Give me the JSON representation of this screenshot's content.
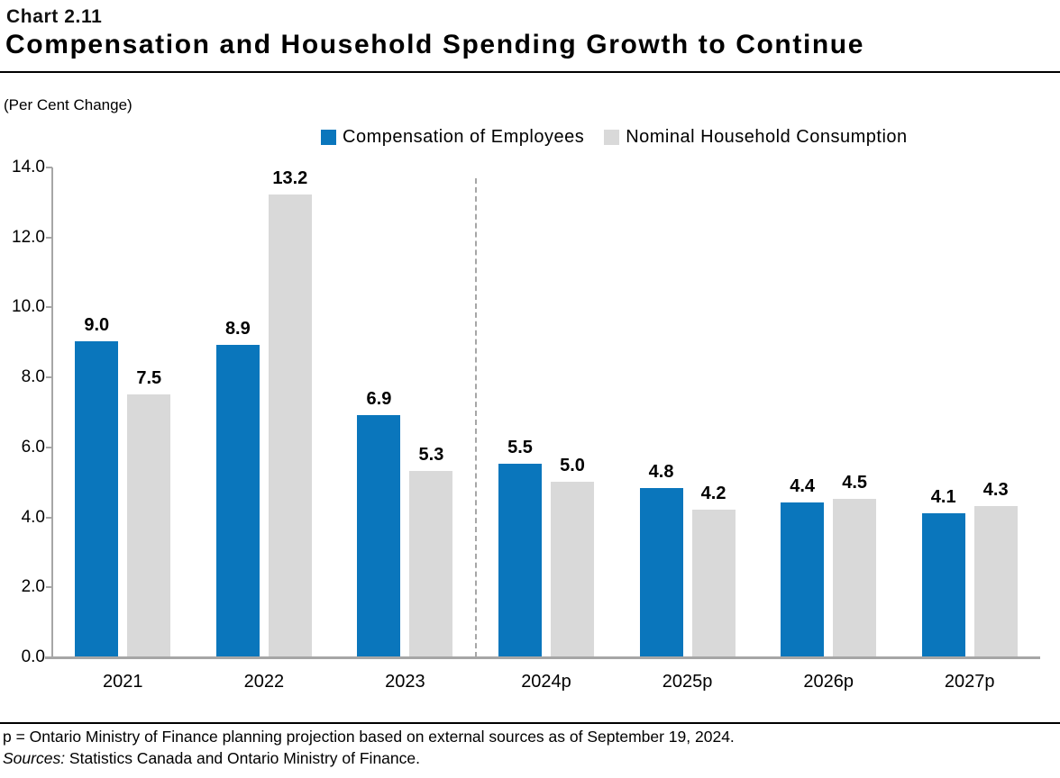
{
  "header": {
    "chart_number": "Chart 2.11",
    "title": "Compensation and Household Spending Growth to Continue"
  },
  "units_label": "(Per Cent Change)",
  "legend": [
    {
      "label": "Compensation of Employees",
      "color": "#0A76BC"
    },
    {
      "label": "Nominal Household Consumption",
      "color": "#D9D9D9"
    }
  ],
  "chart_data": {
    "type": "bar",
    "title": "Compensation and Household Spending Growth to Continue",
    "ylabel": "(Per Cent Change)",
    "categories": [
      "2021",
      "2022",
      "2023",
      "2024p",
      "2025p",
      "2026p",
      "2027p"
    ],
    "series": [
      {
        "name": "Compensation of Employees",
        "color": "#0A76BC",
        "values": [
          9.0,
          8.9,
          6.9,
          5.5,
          4.8,
          4.4,
          4.1
        ]
      },
      {
        "name": "Nominal Household Consumption",
        "color": "#D9D9D9",
        "values": [
          7.5,
          13.2,
          5.3,
          5.0,
          4.2,
          4.5,
          4.3
        ]
      }
    ],
    "ylim": [
      0,
      14
    ],
    "ytick_step": 2,
    "ytick_labels": [
      "0.0",
      "2.0",
      "4.0",
      "6.0",
      "8.0",
      "10.0",
      "12.0",
      "14.0"
    ],
    "value_label_decimals": 1,
    "projection_divider_after_index": 2,
    "grid": false,
    "legend_position": "top",
    "axis_color": "#A6A6A6"
  },
  "footer": {
    "note": "p = Ontario Ministry of Finance planning projection based on external sources as of September 19, 2024.",
    "sources_label": "Sources:",
    "sources_text": " Statistics Canada and Ontario Ministry of Finance."
  }
}
